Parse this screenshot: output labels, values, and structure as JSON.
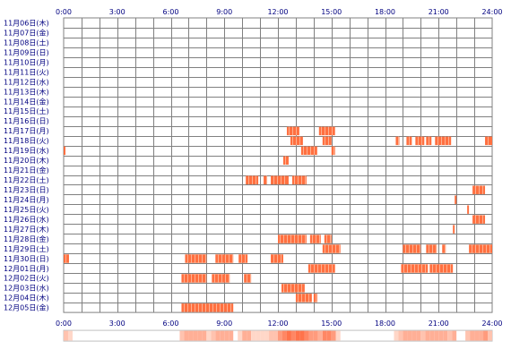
{
  "chart_data": {
    "type": "heatmap",
    "title": "",
    "xlabel": "",
    "ylabel": "",
    "x_range_hours": [
      0,
      24
    ],
    "x_ticks": [
      "0:00",
      "3:00",
      "6:00",
      "9:00",
      "12:00",
      "15:00",
      "18:00",
      "21:00",
      "24:00"
    ],
    "rows": [
      {
        "label": "11月06日(木)",
        "segments": []
      },
      {
        "label": "11月07日(金)",
        "segments": []
      },
      {
        "label": "11月08日(土)",
        "segments": []
      },
      {
        "label": "11月09日(日)",
        "segments": []
      },
      {
        "label": "11月10日(月)",
        "segments": []
      },
      {
        "label": "11月11日(火)",
        "segments": []
      },
      {
        "label": "11月12日(水)",
        "segments": []
      },
      {
        "label": "11月13日(木)",
        "segments": []
      },
      {
        "label": "11月14日(金)",
        "segments": []
      },
      {
        "label": "11月15日(土)",
        "segments": []
      },
      {
        "label": "11月16日(日)",
        "segments": []
      },
      {
        "label": "11月17日(月)",
        "segments": [
          [
            12.5,
            13.2
          ],
          [
            14.3,
            15.2
          ]
        ]
      },
      {
        "label": "11月18日(火)",
        "segments": [
          [
            12.7,
            13.4
          ],
          [
            14.5,
            15.0
          ],
          [
            18.6,
            18.8
          ],
          [
            19.2,
            19.5
          ],
          [
            19.7,
            20.2
          ],
          [
            20.3,
            20.6
          ],
          [
            20.8,
            21.7
          ],
          [
            23.6,
            24.0
          ]
        ]
      },
      {
        "label": "11月19日(水)",
        "segments": [
          [
            0.0,
            0.1
          ],
          [
            13.3,
            14.2
          ],
          [
            15.0,
            15.2
          ]
        ]
      },
      {
        "label": "11月20日(木)",
        "segments": [
          [
            12.3,
            12.6
          ]
        ]
      },
      {
        "label": "11月21日(金)",
        "segments": []
      },
      {
        "label": "11月22日(土)",
        "segments": [
          [
            10.2,
            10.9
          ],
          [
            11.2,
            11.4
          ],
          [
            11.6,
            12.6
          ],
          [
            12.8,
            13.6
          ]
        ]
      },
      {
        "label": "11月23日(日)",
        "segments": [
          [
            22.9,
            23.6
          ]
        ]
      },
      {
        "label": "11月24日(月)",
        "segments": [
          [
            21.9,
            22.0
          ]
        ]
      },
      {
        "label": "11月25日(火)",
        "segments": [
          [
            22.6,
            22.7
          ]
        ]
      },
      {
        "label": "11月26日(水)",
        "segments": [
          [
            22.9,
            23.6
          ]
        ]
      },
      {
        "label": "11月27日(木)",
        "segments": [
          [
            21.8,
            21.9
          ]
        ]
      },
      {
        "label": "11月28日(金)",
        "segments": [
          [
            12.0,
            13.6
          ],
          [
            13.8,
            14.4
          ],
          [
            14.6,
            15.0
          ]
        ]
      },
      {
        "label": "11月29日(土)",
        "segments": [
          [
            14.5,
            15.5
          ],
          [
            19.0,
            20.0
          ],
          [
            20.3,
            20.9
          ],
          [
            21.2,
            21.4
          ],
          [
            22.7,
            24.0
          ]
        ]
      },
      {
        "label": "11月30日(日)",
        "segments": [
          [
            0.0,
            0.3
          ],
          [
            6.8,
            8.0
          ],
          [
            8.5,
            9.5
          ],
          [
            9.8,
            10.3
          ],
          [
            11.6,
            12.3
          ]
        ]
      },
      {
        "label": "12月01日(月)",
        "segments": [
          [
            13.7,
            15.2
          ],
          [
            18.9,
            20.4
          ],
          [
            20.5,
            21.8
          ]
        ]
      },
      {
        "label": "12月02日(火)",
        "segments": [
          [
            6.6,
            8.0
          ],
          [
            8.3,
            9.3
          ],
          [
            10.1,
            10.5
          ]
        ]
      },
      {
        "label": "12月03日(水)",
        "segments": [
          [
            12.2,
            13.5
          ]
        ]
      },
      {
        "label": "12月04日(木)",
        "segments": [
          [
            13.0,
            13.9
          ],
          [
            14.0,
            14.2
          ]
        ]
      },
      {
        "label": "12月05日(金)",
        "segments": [
          [
            6.6,
            9.5
          ]
        ]
      }
    ],
    "bar_color": "#ff7040",
    "grid_color": "#808080",
    "summary_strip": true
  }
}
